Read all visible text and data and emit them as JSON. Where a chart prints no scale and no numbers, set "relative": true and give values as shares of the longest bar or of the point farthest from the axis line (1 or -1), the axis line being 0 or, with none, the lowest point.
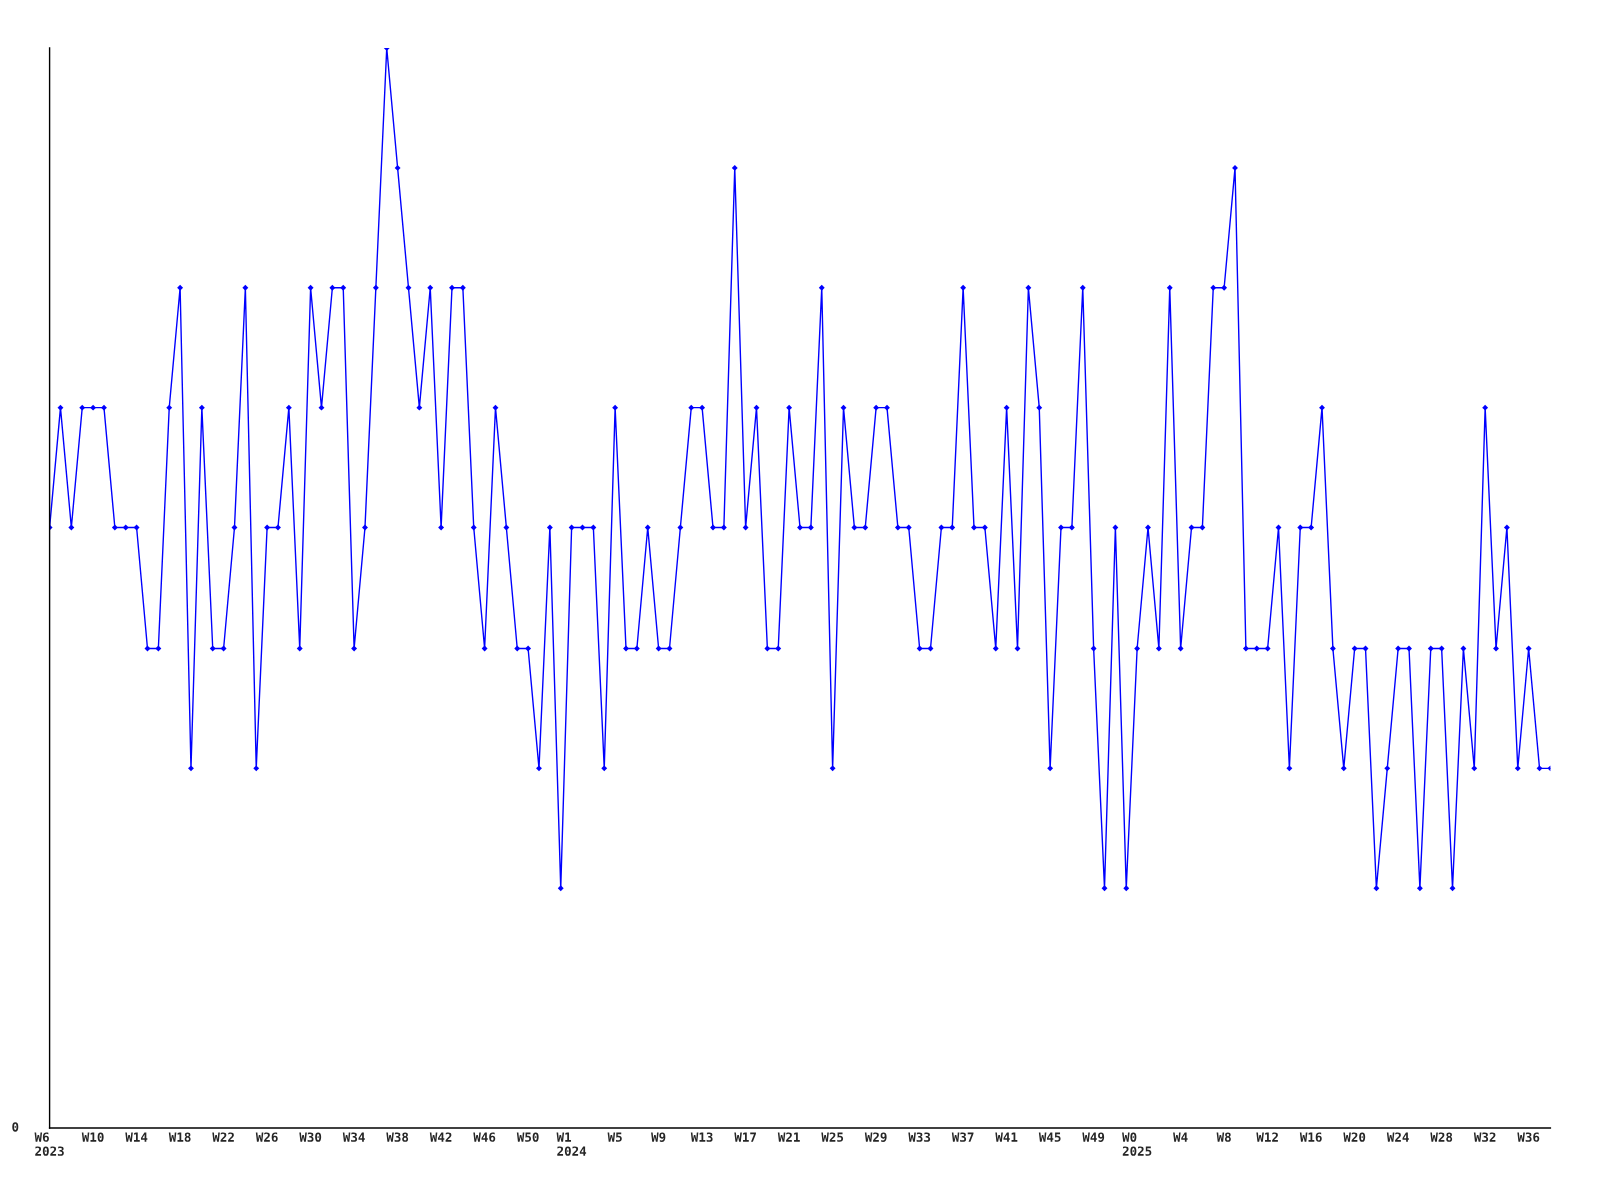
{
  "chart_data": {
    "type": "line",
    "relative": true,
    "marker": "diamond",
    "line_style": "solid",
    "annotations": [
      "0"
    ],
    "categories": [
      "W6\n2023",
      null,
      null,
      null,
      "W10",
      null,
      null,
      null,
      "W14",
      null,
      null,
      null,
      "W18",
      null,
      null,
      null,
      "W22",
      null,
      null,
      null,
      "W26",
      null,
      null,
      null,
      "W30",
      null,
      null,
      null,
      "W34",
      null,
      null,
      null,
      "W38",
      null,
      null,
      null,
      "W42",
      null,
      null,
      null,
      "W46",
      null,
      null,
      null,
      "W50",
      null,
      null,
      null,
      "W1\n2024",
      null,
      null,
      null,
      "W5",
      null,
      null,
      null,
      "W9",
      null,
      null,
      null,
      "W13",
      null,
      null,
      null,
      "W17",
      null,
      null,
      null,
      "W21",
      null,
      null,
      null,
      "W25",
      null,
      null,
      null,
      "W29",
      null,
      null,
      null,
      "W33",
      null,
      null,
      null,
      "W37",
      null,
      null,
      null,
      "W41",
      null,
      null,
      null,
      "W45",
      null,
      null,
      null,
      "W49",
      null,
      null,
      null,
      "W0\n2025",
      null,
      null,
      null,
      "W4",
      null,
      null,
      null,
      "W8",
      null,
      null,
      null,
      "W12",
      null,
      null,
      null,
      "W16",
      null,
      null,
      null,
      "W20",
      null,
      null,
      null,
      "W24",
      null,
      null,
      null,
      "W28",
      null,
      null,
      null,
      "W32",
      null,
      null,
      null,
      "W36",
      null,
      null
    ],
    "series": [
      {
        "color": "#0000ff",
        "values": [
          0.556,
          0.667,
          0.556,
          0.667,
          0.667,
          0.667,
          0.556,
          0.556,
          0.556,
          0.444,
          0.444,
          0.667,
          0.778,
          0.333,
          0.667,
          0.444,
          0.444,
          0.556,
          0.778,
          0.333,
          0.556,
          0.556,
          0.667,
          0.444,
          0.778,
          0.667,
          0.778,
          0.778,
          0.444,
          0.556,
          0.778,
          1,
          0.889,
          0.778,
          0.667,
          0.778,
          0.556,
          0.778,
          0.778,
          0.556,
          0.444,
          0.667,
          0.556,
          0.444,
          0.444,
          0.333,
          0.556,
          0.222,
          0.556,
          0.556,
          0.556,
          0.333,
          0.667,
          0.444,
          0.444,
          0.556,
          0.444,
          0.444,
          0.556,
          0.667,
          0.667,
          0.556,
          0.556,
          0.889,
          0.556,
          0.667,
          0.444,
          0.444,
          0.667,
          0.556,
          0.556,
          0.778,
          0.333,
          0.667,
          0.556,
          0.556,
          0.667,
          0.667,
          0.556,
          0.556,
          0.444,
          0.444,
          0.556,
          0.556,
          0.778,
          0.556,
          0.556,
          0.444,
          0.667,
          0.444,
          0.778,
          0.667,
          0.333,
          0.556,
          0.556,
          0.778,
          0.444,
          0.222,
          0.556,
          0.222,
          0.444,
          0.556,
          0.444,
          0.778,
          0.444,
          0.556,
          0.556,
          0.778,
          0.778,
          0.889,
          0.444,
          0.444,
          0.444,
          0.556,
          0.333,
          0.556,
          0.556,
          0.667,
          0.444,
          0.333,
          0.444,
          0.444,
          0.222,
          0.333,
          0.444,
          0.444,
          0.222,
          0.444,
          0.444,
          0.222,
          0.444,
          0.333,
          0.667,
          0.444,
          0.556,
          0.333,
          0.444,
          0.333,
          0.333
        ]
      }
    ]
  }
}
